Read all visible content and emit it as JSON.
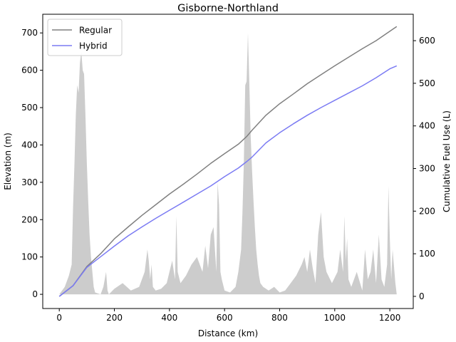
{
  "chart_data": {
    "type": "line",
    "title": "Gisborne-Northland",
    "xlabel": "Distance (km)",
    "ylabel": "Elevation (m)",
    "y2label": "Cumulative Fuel Use (L)",
    "xlim": [
      -60,
      1285
    ],
    "ylim": [
      -38,
      750
    ],
    "y2lim": [
      -28.5,
      662
    ],
    "xticks": [
      0,
      200,
      400,
      600,
      800,
      1000,
      1200
    ],
    "yticks": [
      0,
      100,
      200,
      300,
      400,
      500,
      600,
      700
    ],
    "y2ticks": [
      0,
      100,
      200,
      300,
      400,
      500,
      600
    ],
    "grid": false,
    "legend": {
      "position": "top-left"
    },
    "colors": {
      "regular": "#808080",
      "hybrid": "#7b7bf3",
      "elevation": "#cccccc"
    },
    "elevation": {
      "name": "Elevation",
      "x": [
        0,
        20,
        35,
        45,
        50,
        55,
        60,
        65,
        70,
        75,
        80,
        85,
        90,
        95,
        100,
        105,
        110,
        115,
        120,
        125,
        130,
        150,
        160,
        170,
        175,
        180,
        200,
        230,
        260,
        290,
        310,
        320,
        325,
        330,
        335,
        340,
        350,
        370,
        390,
        400,
        410,
        420,
        425,
        430,
        440,
        460,
        480,
        500,
        520,
        530,
        540,
        550,
        560,
        570,
        575,
        580,
        585,
        590,
        600,
        620,
        640,
        650,
        660,
        665,
        670,
        675,
        680,
        685,
        690,
        695,
        700,
        705,
        710,
        715,
        720,
        725,
        730,
        740,
        760,
        780,
        800,
        820,
        840,
        860,
        880,
        890,
        900,
        910,
        920,
        930,
        940,
        950,
        960,
        970,
        990,
        1010,
        1020,
        1030,
        1035,
        1040,
        1045,
        1050,
        1060,
        1080,
        1100,
        1110,
        1120,
        1130,
        1140,
        1150,
        1160,
        1170,
        1180,
        1190,
        1195,
        1200,
        1205,
        1210,
        1220,
        1225
      ],
      "y": [
        0,
        20,
        50,
        80,
        230,
        350,
        480,
        560,
        540,
        620,
        650,
        600,
        590,
        480,
        350,
        250,
        160,
        100,
        60,
        20,
        5,
        0,
        20,
        60,
        10,
        0,
        15,
        30,
        10,
        20,
        60,
        120,
        90,
        40,
        80,
        20,
        10,
        15,
        30,
        60,
        90,
        40,
        210,
        60,
        30,
        50,
        80,
        100,
        60,
        130,
        70,
        160,
        180,
        60,
        300,
        240,
        60,
        40,
        10,
        5,
        20,
        60,
        120,
        220,
        350,
        560,
        570,
        700,
        560,
        420,
        330,
        250,
        180,
        120,
        80,
        50,
        30,
        20,
        10,
        20,
        5,
        10,
        30,
        50,
        80,
        100,
        60,
        120,
        70,
        30,
        160,
        220,
        100,
        60,
        30,
        60,
        120,
        60,
        210,
        90,
        150,
        40,
        20,
        60,
        10,
        120,
        40,
        60,
        120,
        30,
        160,
        40,
        20,
        80,
        290,
        150,
        40,
        120,
        30,
        0
      ]
    },
    "series": [
      {
        "name": "Regular",
        "x": [
          0,
          50,
          100,
          150,
          200,
          250,
          300,
          350,
          400,
          450,
          500,
          550,
          600,
          650,
          680,
          700,
          750,
          800,
          850,
          900,
          950,
          1000,
          1050,
          1100,
          1150,
          1200,
          1225
        ],
        "y": [
          0,
          25,
          70,
          100,
          135,
          163,
          190,
          215,
          240,
          263,
          287,
          312,
          335,
          357,
          375,
          390,
          425,
          452,
          475,
          499,
          520,
          541,
          561,
          581,
          600,
          622,
          633
        ]
      },
      {
        "name": "Hybrid",
        "x": [
          0,
          50,
          100,
          150,
          200,
          250,
          300,
          350,
          400,
          450,
          500,
          550,
          600,
          650,
          680,
          700,
          750,
          800,
          850,
          900,
          950,
          1000,
          1050,
          1100,
          1150,
          1200,
          1225
        ],
        "y": [
          0,
          25,
          68,
          93,
          118,
          142,
          163,
          183,
          202,
          221,
          240,
          259,
          281,
          301,
          316,
          327,
          360,
          384,
          405,
          425,
          443,
          460,
          477,
          494,
          513,
          534,
          541
        ]
      }
    ]
  }
}
